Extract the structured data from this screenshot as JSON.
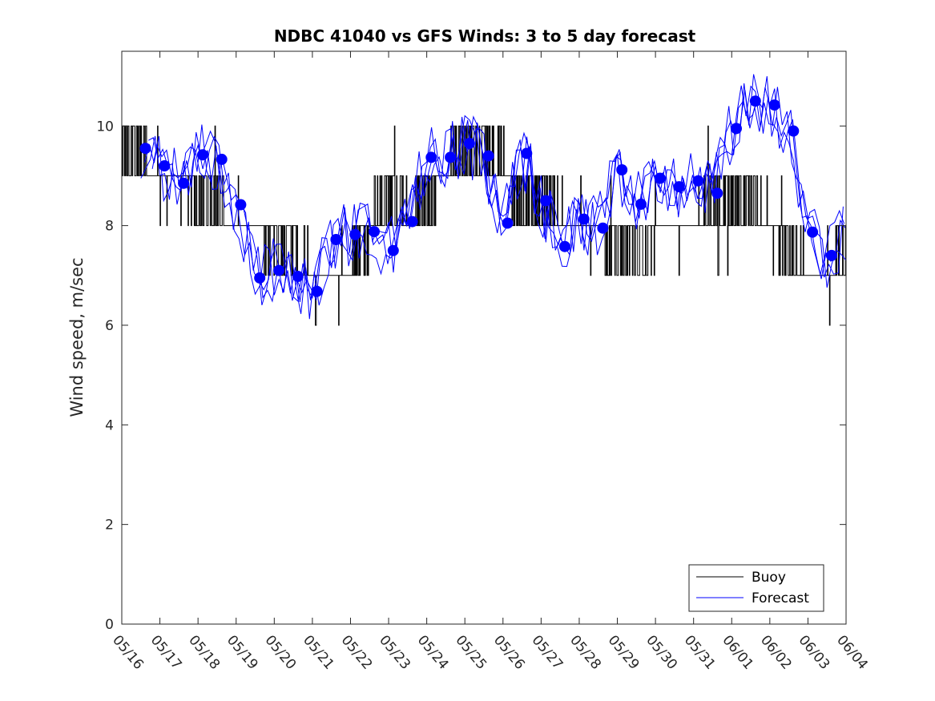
{
  "chart_data": {
    "type": "line",
    "title": "NDBC 41040 vs GFS Winds: 3 to 5 day forecast",
    "xlabel": "",
    "ylabel": "Wind speed, m/sec",
    "ylim": [
      0,
      11.5
    ],
    "yticks": [
      0,
      2,
      4,
      6,
      8,
      10
    ],
    "xtick_labels": [
      "05/16",
      "05/17",
      "05/18",
      "05/19",
      "05/20",
      "05/21",
      "05/22",
      "05/23",
      "05/24",
      "05/25",
      "05/26",
      "05/27",
      "05/28",
      "05/29",
      "05/30",
      "05/31",
      "06/01",
      "06/02",
      "06/03",
      "06/04"
    ],
    "xlim_days": [
      0,
      19
    ],
    "x_units": "days since 05/16",
    "grid": false,
    "legend_position": "bottom-right",
    "legend": [
      {
        "name": "Buoy",
        "color": "#000000"
      },
      {
        "name": "Forecast",
        "color": "#0000ff"
      }
    ],
    "series": [
      {
        "name": "Buoy",
        "style": "step",
        "color": "#000000",
        "x": [
          0.0,
          0.5,
          1.0,
          1.5,
          2.0,
          2.5,
          3.0,
          3.5,
          4.0,
          4.5,
          5.0,
          5.5,
          6.0,
          6.5,
          7.0,
          7.5,
          8.0,
          8.5,
          9.0,
          9.5,
          10.0,
          10.5,
          11.0,
          11.5,
          12.0,
          12.5,
          13.0,
          13.5,
          14.0,
          14.5,
          15.0,
          15.5,
          16.0,
          16.5,
          17.0,
          17.5,
          18.0,
          18.5,
          19.0
        ],
        "y": [
          9.5,
          9.5,
          9.0,
          9.0,
          8.5,
          8.5,
          8.0,
          8.0,
          7.5,
          7.5,
          7.0,
          7.0,
          7.0,
          8.0,
          8.5,
          8.0,
          8.5,
          9.0,
          9.5,
          9.5,
          9.0,
          8.5,
          8.5,
          8.0,
          8.0,
          8.0,
          7.5,
          7.5,
          8.0,
          8.0,
          8.0,
          8.5,
          8.5,
          8.5,
          8.0,
          7.5,
          7.0,
          7.0,
          7.5
        ]
      },
      {
        "name": "Forecast",
        "style": "line",
        "color": "#0000ff",
        "x": [
          0.5,
          1.0,
          1.5,
          2.0,
          2.5,
          3.0,
          3.5,
          4.0,
          4.5,
          5.0,
          5.5,
          6.0,
          6.5,
          7.0,
          7.5,
          8.0,
          8.5,
          9.0,
          9.5,
          10.0,
          10.5,
          11.0,
          11.5,
          12.0,
          12.5,
          13.0,
          13.5,
          14.0,
          14.5,
          15.0,
          15.5,
          16.0,
          16.5,
          17.0,
          17.5,
          18.0,
          18.5,
          19.0
        ],
        "y": [
          9.55,
          9.2,
          8.85,
          9.42,
          9.33,
          8.42,
          6.95,
          7.1,
          6.98,
          6.68,
          7.72,
          7.82,
          7.88,
          7.5,
          8.08,
          9.37,
          9.37,
          9.65,
          9.4,
          8.05,
          9.45,
          8.5,
          7.58,
          8.13,
          7.95,
          9.12,
          8.43,
          8.95,
          8.78,
          8.9,
          8.65,
          9.95,
          10.5,
          10.42,
          9.9,
          7.87,
          7.4,
          7.9
        ]
      }
    ],
    "markers": {
      "name": "Forecast",
      "color": "#0000ff",
      "x": [
        0.62,
        1.12,
        1.62,
        2.12,
        2.62,
        3.12,
        3.62,
        4.12,
        4.62,
        5.12,
        5.62,
        6.12,
        6.62,
        7.12,
        7.62,
        8.12,
        8.62,
        9.12,
        9.62,
        10.12,
        10.62,
        11.12,
        11.62,
        12.12,
        12.62,
        13.12,
        13.62,
        14.12,
        14.62,
        15.12,
        15.62,
        16.12,
        16.62,
        17.12,
        17.62,
        18.12,
        18.62
      ],
      "y": [
        9.55,
        9.2,
        8.85,
        9.42,
        9.33,
        8.42,
        6.95,
        7.1,
        6.98,
        6.68,
        7.72,
        7.82,
        7.88,
        7.5,
        8.08,
        9.37,
        9.37,
        9.65,
        9.4,
        8.05,
        9.45,
        8.5,
        7.58,
        8.13,
        7.95,
        9.12,
        8.43,
        8.95,
        8.78,
        8.9,
        8.65,
        9.95,
        10.5,
        10.42,
        9.9,
        7.87,
        7.4
      ]
    }
  }
}
